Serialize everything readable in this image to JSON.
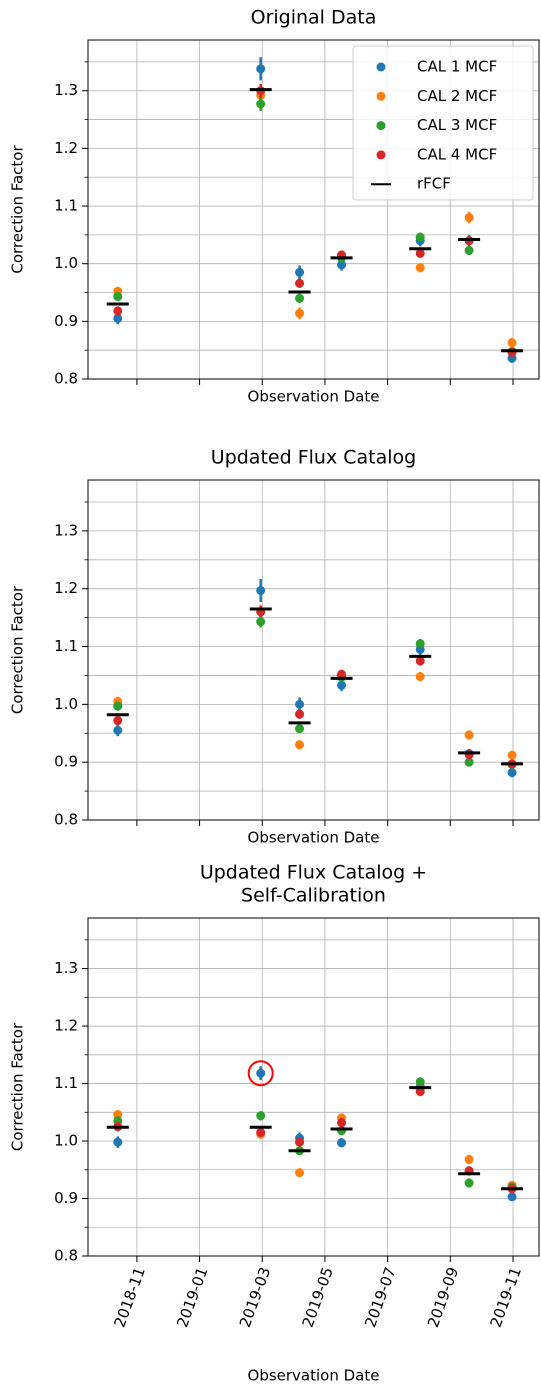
{
  "chart_data": [
    {
      "type": "errorbar",
      "title": [
        "Original Data"
      ],
      "ylabel": "Correction Factor",
      "xlabel": "Observation Date",
      "x": [
        9.39,
        13.95,
        15.19,
        16.53,
        19.04,
        20.6,
        21.97
      ],
      "xlim": [
        8.44,
        22.83
      ],
      "xticks": [
        10,
        12,
        14,
        16,
        18,
        20,
        22
      ],
      "ylim": [
        0.8,
        1.388
      ],
      "yticks": [
        0.8,
        0.9,
        1.0,
        1.1,
        1.2,
        1.3
      ],
      "yminor": [
        0.85,
        0.95,
        1.05,
        1.15,
        1.25,
        1.35
      ],
      "grid": true,
      "legend": "upper right",
      "series": [
        {
          "name": "CAL 1 MCF",
          "color": "#1f77b4",
          "marker": "circle",
          "values": [
            0.905,
            1.338,
            0.985,
            0.998,
            1.04,
            1.04,
            0.836
          ],
          "errors": [
            0.01,
            0.02,
            0.012,
            0.01,
            0.01,
            0.01,
            0.008
          ]
        },
        {
          "name": "CAL 2 MCF",
          "color": "#ff7f0e",
          "marker": "circle",
          "values": [
            0.952,
            1.292,
            0.914,
            1.012,
            0.993,
            1.08,
            0.863
          ],
          "errors": [
            0.008,
            0.012,
            0.01,
            0.008,
            0.008,
            0.01,
            0.008
          ]
        },
        {
          "name": "CAL 3 MCF",
          "color": "#2ca02c",
          "marker": "circle",
          "values": [
            0.943,
            1.277,
            0.94,
            1.01,
            1.046,
            1.023,
            0.848
          ],
          "errors": [
            0.008,
            0.012,
            0.008,
            0.008,
            0.008,
            0.008,
            0.006
          ]
        },
        {
          "name": "CAL 4 MCF",
          "color": "#d62728",
          "marker": "circle",
          "values": [
            0.918,
            1.3,
            0.966,
            1.015,
            1.018,
            1.04,
            0.846
          ],
          "errors": [
            0.008,
            0.012,
            0.008,
            0.008,
            0.008,
            0.008,
            0.006
          ]
        },
        {
          "name": "rFCF",
          "color": "#000000",
          "marker": "hline",
          "values": [
            0.93,
            1.302,
            0.951,
            1.01,
            1.026,
            1.042,
            0.849
          ]
        }
      ]
    },
    {
      "type": "errorbar",
      "title": [
        "Updated Flux Catalog"
      ],
      "ylabel": "Correction Factor",
      "xlabel": "Observation Date",
      "x": [
        9.39,
        13.95,
        15.19,
        16.53,
        19.04,
        20.6,
        21.97
      ],
      "xlim": [
        8.44,
        22.83
      ],
      "xticks": [
        10,
        12,
        14,
        16,
        18,
        20,
        22
      ],
      "ylim": [
        0.8,
        1.388
      ],
      "yticks": [
        0.8,
        0.9,
        1.0,
        1.1,
        1.2,
        1.3
      ],
      "yminor": [
        0.85,
        0.95,
        1.05,
        1.15,
        1.25,
        1.35
      ],
      "grid": true,
      "series": [
        {
          "name": "CAL 1 MCF",
          "color": "#1f77b4",
          "marker": "circle",
          "values": [
            0.955,
            1.197,
            1.0,
            1.033,
            1.095,
            0.915,
            0.882
          ],
          "errors": [
            0.01,
            0.02,
            0.012,
            0.01,
            0.01,
            0.008,
            0.008
          ]
        },
        {
          "name": "CAL 2 MCF",
          "color": "#ff7f0e",
          "marker": "circle",
          "values": [
            1.005,
            1.16,
            0.93,
            1.05,
            1.048,
            0.947,
            0.912
          ],
          "errors": [
            0.008,
            0.012,
            0.008,
            0.008,
            0.008,
            0.008,
            0.008
          ]
        },
        {
          "name": "CAL 3 MCF",
          "color": "#2ca02c",
          "marker": "circle",
          "values": [
            0.997,
            1.143,
            0.958,
            1.047,
            1.105,
            0.9,
            0.896
          ],
          "errors": [
            0.008,
            0.01,
            0.008,
            0.008,
            0.008,
            0.006,
            0.006
          ]
        },
        {
          "name": "CAL 4 MCF",
          "color": "#d62728",
          "marker": "circle",
          "values": [
            0.972,
            1.16,
            0.983,
            1.052,
            1.075,
            0.913,
            0.897
          ],
          "errors": [
            0.008,
            0.01,
            0.008,
            0.008,
            0.008,
            0.006,
            0.006
          ]
        },
        {
          "name": "rFCF",
          "color": "#000000",
          "marker": "hline",
          "values": [
            0.982,
            1.165,
            0.968,
            1.045,
            1.083,
            0.916,
            0.897
          ]
        }
      ]
    },
    {
      "type": "errorbar",
      "title": [
        "Updated Flux Catalog +",
        "Self-Calibration"
      ],
      "ylabel": "Correction Factor",
      "xlabel": "Observation Date",
      "x": [
        9.39,
        13.95,
        15.19,
        16.53,
        19.04,
        20.6,
        21.97
      ],
      "xlim": [
        8.44,
        22.83
      ],
      "xticks": [
        {
          "value": 10,
          "label": "2018-11"
        },
        {
          "value": 12,
          "label": "2019-01"
        },
        {
          "value": 14,
          "label": "2019-03"
        },
        {
          "value": 16,
          "label": "2019-05"
        },
        {
          "value": 18,
          "label": "2019-07"
        },
        {
          "value": 20,
          "label": "2019-09"
        },
        {
          "value": 22,
          "label": "2019-11"
        }
      ],
      "ylim": [
        0.8,
        1.388
      ],
      "yticks": [
        0.8,
        0.9,
        1.0,
        1.1,
        1.2,
        1.3
      ],
      "yminor": [
        0.85,
        0.95,
        1.05,
        1.15,
        1.25,
        1.35
      ],
      "grid": true,
      "highlight": {
        "series": 0,
        "index": 1,
        "color": "#ff0000"
      },
      "series": [
        {
          "name": "CAL 1 MCF",
          "color": "#1f77b4",
          "marker": "circle",
          "values": [
            0.998,
            1.118,
            1.005,
            0.997,
            1.095,
            0.948,
            0.903
          ],
          "errors": [
            0.01,
            0.012,
            0.01,
            0.008,
            0.008,
            0.008,
            0.006
          ]
        },
        {
          "name": "CAL 2 MCF",
          "color": "#ff7f0e",
          "marker": "circle",
          "values": [
            1.046,
            1.012,
            0.945,
            1.04,
            1.09,
            0.968,
            0.923
          ],
          "errors": [
            0.008,
            0.008,
            0.006,
            0.008,
            0.008,
            0.008,
            0.006
          ]
        },
        {
          "name": "CAL 3 MCF",
          "color": "#2ca02c",
          "marker": "circle",
          "values": [
            1.035,
            1.044,
            0.983,
            1.018,
            1.103,
            0.927,
            0.92
          ],
          "errors": [
            0.008,
            0.008,
            0.006,
            0.008,
            0.008,
            0.008,
            0.006
          ]
        },
        {
          "name": "CAL 4 MCF",
          "color": "#d62728",
          "marker": "circle",
          "values": [
            1.025,
            1.015,
            0.998,
            1.032,
            1.086,
            0.948,
            0.917
          ],
          "errors": [
            0.008,
            0.008,
            0.006,
            0.008,
            0.008,
            0.008,
            0.006
          ]
        },
        {
          "name": "rFCF",
          "color": "#000000",
          "marker": "hline",
          "values": [
            1.024,
            1.024,
            0.983,
            1.021,
            1.093,
            0.943,
            0.917
          ]
        }
      ]
    }
  ]
}
